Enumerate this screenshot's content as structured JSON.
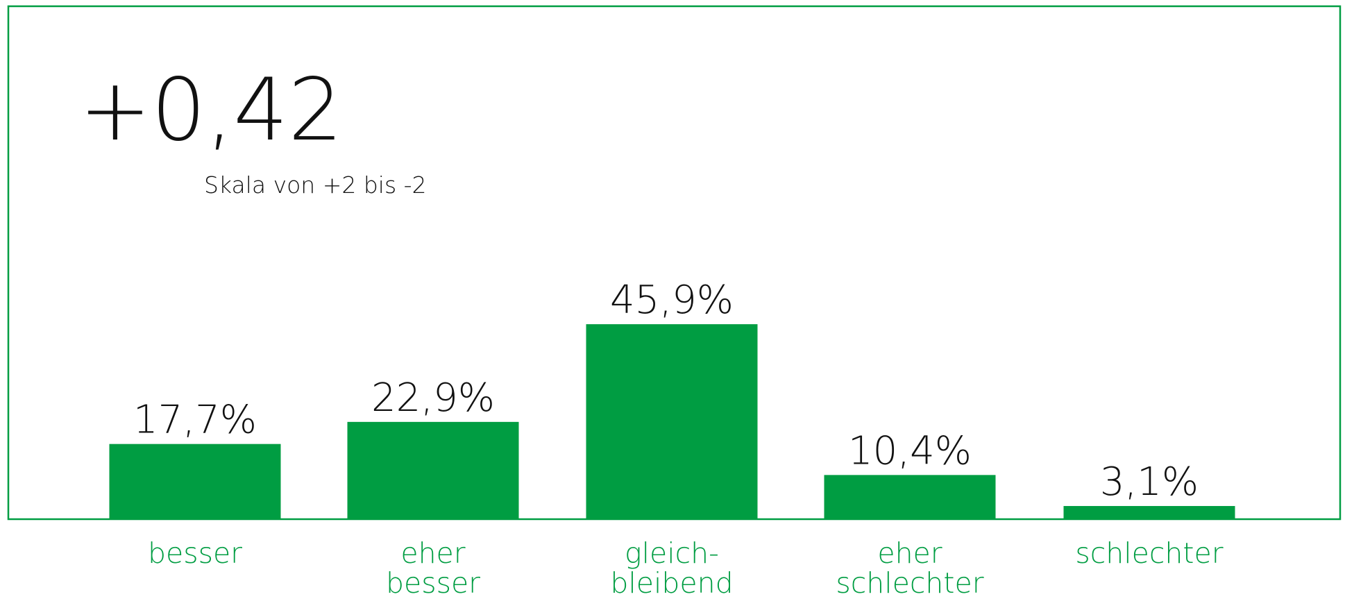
{
  "chart_data": {
    "type": "bar",
    "title": "+0,42",
    "subtitle": "Skala von +2 bis -2",
    "categories": [
      [
        "besser"
      ],
      [
        "eher",
        "besser"
      ],
      [
        "gleich-",
        "bleibend"
      ],
      [
        "eher",
        "schlechter"
      ],
      [
        "schlechter"
      ]
    ],
    "values": [
      17.7,
      22.9,
      45.9,
      10.4,
      3.1
    ],
    "value_labels": [
      "17,7%",
      "22,9%",
      "45,9%",
      "10,4%",
      "3,1%"
    ],
    "color": "#009d42",
    "ylim": [
      0,
      100
    ]
  }
}
